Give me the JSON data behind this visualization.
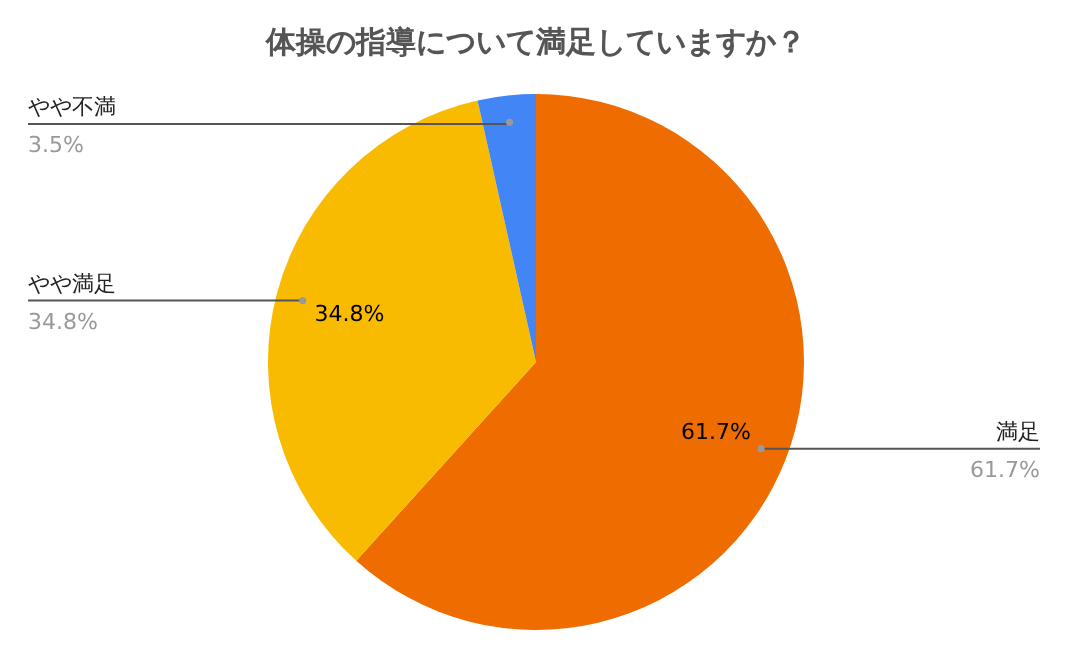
{
  "chart_data": {
    "type": "pie",
    "title": "体操の指導について満足していますか？",
    "categories": [
      "満足",
      "やや満足",
      "やや不満"
    ],
    "values": [
      61.7,
      34.8,
      3.5
    ],
    "colors": [
      "#ef6c00",
      "#f9bb00",
      "#4285f4"
    ],
    "value_labels": [
      "61.7%",
      "34.8%",
      "3.5%"
    ]
  }
}
